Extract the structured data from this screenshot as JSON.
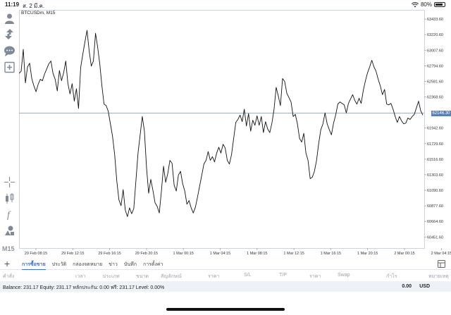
{
  "status": {
    "time": "11:19",
    "date": "ส. 2 มี.ค.",
    "battery": "80%",
    "battery_level": 0.8
  },
  "chart": {
    "symbol": "BTCUSDm, M15",
    "current_price": "62146.30",
    "colors": {
      "line": "#111111",
      "grid": "#e3e6ea",
      "price_line": "#9aa3ad",
      "price_tag": "#5b7fb3"
    }
  },
  "toolbar": {
    "timeframe": "M15",
    "icons": [
      "account-icon",
      "trade-icon",
      "chat-icon",
      "add-chart-icon",
      "crosshair-icon",
      "indicators-icon",
      "function-icon",
      "objects-icon"
    ]
  },
  "tabs": {
    "items": [
      "การซื้อขาย",
      "ประวัติ",
      "กล่องจดหมาย",
      "ข่าว",
      "บันทึก",
      "การตั้งค่า"
    ],
    "active": 0
  },
  "columns": {
    "items": [
      "คำสั่ง",
      "เวลา",
      "ประเภท",
      "ขนาด",
      "สัญลักษณ์",
      "ราคา",
      "S/L",
      "T/P",
      "ราคา",
      "Swap",
      "กำไร",
      "หมายเหตุ"
    ]
  },
  "balance": {
    "text": "Balance: 231.17 Equity: 231.17 หลักประกัน: 0.00 ฟรี: 231.17 Level: 0.00%",
    "profit": "0.00",
    "currency": "USD"
  },
  "chart_data": {
    "type": "line",
    "title": "BTCUSDm, M15",
    "xlabel": "",
    "ylabel": "",
    "ylim": [
      60300,
      63560
    ],
    "yticks": [
      "63433.60",
      "63220.60",
      "63007.60",
      "62794.60",
      "62581.60",
      "62368.60",
      "62146.30",
      "61942.60",
      "61729.60",
      "61516.60",
      "61303.60",
      "61090.60",
      "60877.60",
      "60664.60",
      "60451.60"
    ],
    "xticks": [
      "29 Feb 08:15",
      "29 Feb 12:15",
      "29 Feb 16:15",
      "29 Feb 20:15",
      "1 Mar 00:15",
      "1 Mar 04:15",
      "1 Mar 08:15",
      "1 Mar 12:15",
      "1 Mar 16:15",
      "1 Mar 20:15",
      "2 Mar 00:15",
      "2 Mar 04:15"
    ],
    "current_price": 62146.3,
    "series": [
      {
        "values": [
          62690,
          62720,
          63020,
          62560,
          62780,
          62830,
          62620,
          62520,
          62440,
          62540,
          62610,
          62590,
          62680,
          62750,
          62820,
          62860,
          62690,
          62610,
          62450,
          62730,
          62590,
          62700,
          62860,
          62550,
          62410,
          62550,
          62310,
          62480,
          62210,
          62770,
          62950,
          63120,
          63280,
          63000,
          62790,
          62860,
          63240,
          63050,
          62820,
          62520,
          62270,
          62250,
          62170,
          62000,
          61830,
          61580,
          61220,
          60960,
          60880,
          61100,
          60820,
          60730,
          60850,
          60770,
          60840,
          61220,
          61600,
          61850,
          62100,
          61900,
          61400,
          61050,
          61240,
          61090,
          60920,
          60870,
          60780,
          61080,
          61420,
          61200,
          61320,
          61500,
          61460,
          61160,
          61080,
          61300,
          61350,
          61180,
          61080,
          60900,
          60950,
          60850,
          60780,
          60860,
          61000,
          61150,
          61300,
          61450,
          61500,
          61620,
          61500,
          61550,
          61480,
          61600,
          61680,
          61600,
          61720,
          61670,
          61500,
          61450,
          61580,
          61800,
          62020,
          62060,
          62120,
          62030,
          62200,
          61970,
          62140,
          61900,
          62050,
          61980,
          62110,
          61980,
          62100,
          61880,
          62030,
          61930,
          61880,
          62010,
          62200,
          62500,
          62380,
          62250,
          62620,
          62580,
          62420,
          62360,
          62300,
          62100,
          62130,
          62000,
          61800,
          61750,
          61870,
          61600,
          61500,
          61250,
          61270,
          61350,
          61500,
          61730,
          61920,
          62000,
          62150,
          62000,
          61920,
          61850,
          62010,
          62120,
          62270,
          62300,
          62280,
          62260,
          62150,
          62280,
          62340,
          62400,
          62320,
          62270,
          62350,
          62280,
          62460,
          62590,
          62700,
          62780,
          62870,
          62780,
          62720,
          62610,
          62520,
          62400,
          62470,
          62270,
          62260,
          62280,
          62200,
          62100,
          62020,
          62100,
          62040,
          62000,
          62010,
          62080,
          62060,
          62100,
          62130,
          62220,
          62310,
          62180,
          62120
        ]
      }
    ],
    "grid": true,
    "legend": "none"
  }
}
